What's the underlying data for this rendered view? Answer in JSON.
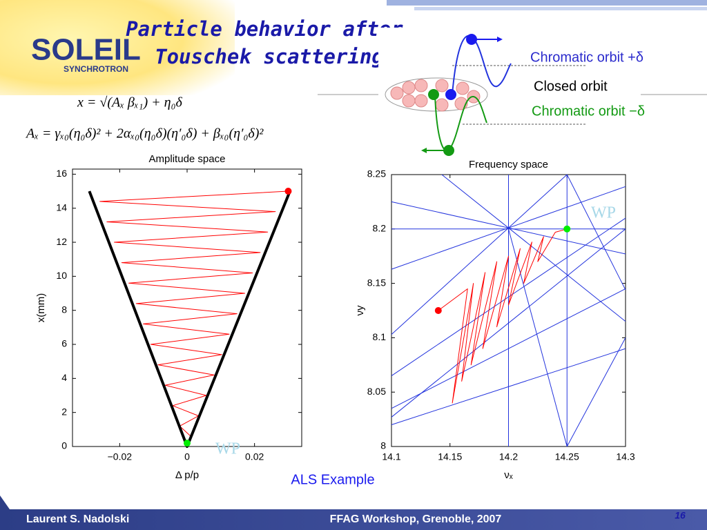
{
  "header": {
    "title_lines": [
      "Particle behavior after",
      "Touschek scattering"
    ],
    "logo": "SOLEIL",
    "logo_sub": "SYNCHROTRON"
  },
  "formulas": [
    "x = √(Aₓ βₓ₁) + η₀δ",
    "Aₓ = γₓ₀(η₀δ)² + 2αₓ₀(η₀δ)(η′₀δ) + βₓ₀(η′₀δ)²"
  ],
  "diagram": {
    "labels": [
      "Chromatic orbit +δ",
      "Closed orbit",
      "Chromatic orbit −δ"
    ]
  },
  "chart_data": [
    {
      "type": "line",
      "title": "Amplitude space",
      "xlabel": "Δ p/p",
      "ylabel": "x(mm)",
      "xlim": [
        -0.034,
        0.034
      ],
      "ylim": [
        0,
        16.3
      ],
      "xticks": [
        {
          "value": -0.02,
          "label": "−0.02"
        },
        0,
        0.02
      ],
      "yticks": [
        0,
        2,
        4,
        6,
        8,
        10,
        12,
        14,
        16
      ],
      "series": [
        {
          "color": "#ff0000",
          "linewidth": 1,
          "x": [
            0.03,
            -0.0259,
            0.0262,
            -0.0238,
            0.0239,
            -0.0216,
            0.0217,
            -0.0194,
            0.0194,
            -0.0173,
            0.0171,
            -0.0151,
            0.0148,
            -0.013,
            0.0125,
            -0.0108,
            0.0103,
            -0.0086,
            0.008,
            -0.0065,
            0.0057,
            -0.0043,
            0.0034,
            -0.0022,
            0.0011
          ],
          "values": [
            15,
            14.4,
            13.8,
            13.2,
            12.6,
            12,
            11.4,
            10.8,
            10.2,
            9.6,
            9,
            8.4,
            7.8,
            7.2,
            6.6,
            6,
            5.4,
            4.8,
            4.2,
            3.6,
            3,
            2.4,
            1.8,
            1.2,
            0.6
          ]
        },
        {
          "color": "#000000",
          "linewidth": 4,
          "x": [
            -0.029,
            0,
            0.0305
          ],
          "values": [
            15,
            0,
            15
          ]
        }
      ],
      "points": [
        {
          "color": "#ff0000",
          "x": 0.03,
          "y": 15
        },
        {
          "color": "#00ee00",
          "x": 0,
          "y": 0.2
        }
      ],
      "annotation": "WP"
    },
    {
      "type": "line",
      "title": "Frequency space",
      "xlabel": "νₓ",
      "ylabel": "νy",
      "xlim": [
        14.1,
        14.3
      ],
      "ylim": [
        8,
        8.25
      ],
      "xticks": [
        14.1,
        14.15,
        14.2,
        14.25,
        14.3
      ],
      "yticks": [
        8,
        8.05,
        8.1,
        8.15,
        8.2,
        8.25
      ],
      "series": [
        {
          "color": "#2233dd",
          "linewidth": 1,
          "x": [
            14.2,
            14.2
          ],
          "values": [
            8,
            8.25
          ]
        },
        {
          "color": "#2233dd",
          "linewidth": 1,
          "x": [
            14.25,
            14.25
          ],
          "values": [
            8,
            8.25
          ]
        },
        {
          "color": "#2233dd",
          "linewidth": 1,
          "x": [
            14.1,
            14.3
          ],
          "values": [
            8.2,
            8.2
          ]
        },
        {
          "color": "#2233dd",
          "linewidth": 1,
          "x": [
            14.143,
            14.3
          ],
          "values": [
            8.25,
            8.115
          ]
        },
        {
          "color": "#2233dd",
          "linewidth": 1,
          "x": [
            14.1,
            14.3
          ],
          "values": [
            8.225,
            8.177
          ]
        },
        {
          "color": "#2233dd",
          "linewidth": 1,
          "x": [
            14.1,
            14.3
          ],
          "values": [
            8.163,
            8.239
          ]
        },
        {
          "color": "#2233dd",
          "linewidth": 1,
          "x": [
            14.2,
            14.25
          ],
          "values": [
            8.2,
            8
          ]
        },
        {
          "color": "#2233dd",
          "linewidth": 1,
          "x": [
            14.1,
            14.25
          ],
          "values": [
            8.103,
            8.25
          ]
        },
        {
          "color": "#2233dd",
          "linewidth": 1,
          "x": [
            14.25,
            14.3
          ],
          "values": [
            8.25,
            8.144
          ]
        },
        {
          "color": "#2233dd",
          "linewidth": 1,
          "x": [
            14.25,
            14.3
          ],
          "values": [
            8,
            8.1
          ]
        },
        {
          "color": "#2233dd",
          "linewidth": 1,
          "x": [
            14.1,
            14.3
          ],
          "values": [
            8.027,
            8.2
          ]
        },
        {
          "color": "#2233dd",
          "linewidth": 1,
          "x": [
            14.1,
            14.3
          ],
          "values": [
            8.035,
            8.145
          ]
        },
        {
          "color": "#2233dd",
          "linewidth": 1,
          "x": [
            14.1,
            14.3
          ],
          "values": [
            8.065,
            8.21
          ]
        },
        {
          "color": "#2233dd",
          "linewidth": 1,
          "x": [
            14.1,
            14.3
          ],
          "values": [
            8.02,
            8.09
          ]
        },
        {
          "color": "#ff0000",
          "linewidth": 1,
          "x": [
            14.14,
            14.165,
            14.152,
            14.17,
            14.16,
            14.18,
            14.168,
            14.19,
            14.178,
            14.2,
            14.19,
            14.21,
            14.2,
            14.22,
            14.213,
            14.23,
            14.225,
            14.24,
            14.25
          ],
          "values": [
            8.125,
            8.145,
            8.04,
            8.15,
            8.06,
            8.16,
            8.075,
            8.17,
            8.09,
            8.175,
            8.11,
            8.182,
            8.13,
            8.188,
            8.15,
            8.193,
            8.17,
            8.197,
            8.2
          ]
        }
      ],
      "points": [
        {
          "color": "#ff0000",
          "x": 14.14,
          "y": 8.125
        },
        {
          "color": "#00ee00",
          "x": 14.25,
          "y": 8.2
        }
      ],
      "annotation": "WP"
    }
  ],
  "caption": "ALS Example",
  "footer": {
    "author": "Laurent S. Nadolski",
    "event": "FFAG Workshop, Grenoble, 2007",
    "page": "16"
  }
}
